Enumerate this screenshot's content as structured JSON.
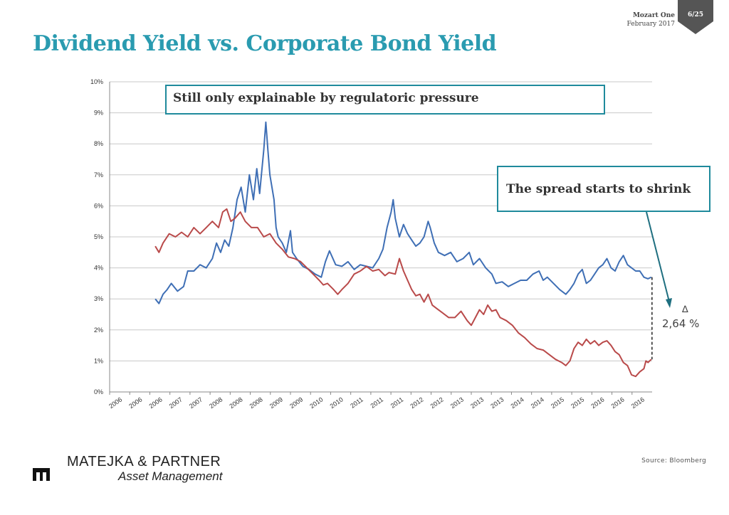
{
  "header": {
    "title": "Dividend Yield vs. Corporate Bond Yield",
    "meta_line1": "Mozart One",
    "meta_line2": "February 2017",
    "page_number": "6/25",
    "badge_color": "#555555",
    "title_color": "#2a9bb0"
  },
  "callouts": {
    "top": "Still only explainable by regulatoric pressure",
    "right": "The spread starts to shrink",
    "border_color": "#1f8a9c"
  },
  "spread": {
    "delta_symbol": "∆",
    "value": "2,64 %"
  },
  "footer": {
    "source": "Source: Bloomberg",
    "company_line1": "MATEJKA & PARTNER",
    "company_line2": "Asset Management",
    "logo_icon": "building-mark-icon"
  },
  "chart_data": {
    "type": "line",
    "title": "",
    "xlabel": "",
    "ylabel": "",
    "ylim": [
      0,
      10
    ],
    "y_ticks": [
      "0%",
      "1%",
      "2%",
      "3%",
      "4%",
      "5%",
      "6%",
      "7%",
      "8%",
      "9%",
      "10%"
    ],
    "x_tick_labels": [
      "2006",
      "2006",
      "2006",
      "2007",
      "2007",
      "2008",
      "2008",
      "2008",
      "2009",
      "2009",
      "2010",
      "2010",
      "2011",
      "2011",
      "2011",
      "2012",
      "2012",
      "2013",
      "2013",
      "2013",
      "2014",
      "2014",
      "2015",
      "2015",
      "2016",
      "2016",
      "2016"
    ],
    "grid": "horizontal",
    "legend": "none",
    "series": [
      {
        "color": "#3f6fb5",
        "points": [
          [
            0.111,
            3.0
          ],
          [
            0.12,
            2.85
          ],
          [
            0.13,
            3.15
          ],
          [
            0.14,
            3.3
          ],
          [
            0.15,
            3.5
          ],
          [
            0.165,
            3.25
          ],
          [
            0.18,
            3.4
          ],
          [
            0.19,
            3.9
          ],
          [
            0.205,
            3.9
          ],
          [
            0.22,
            4.1
          ],
          [
            0.235,
            4.0
          ],
          [
            0.25,
            4.3
          ],
          [
            0.26,
            4.8
          ],
          [
            0.27,
            4.5
          ],
          [
            0.28,
            4.9
          ],
          [
            0.29,
            4.7
          ],
          [
            0.3,
            5.3
          ],
          [
            0.31,
            6.2
          ],
          [
            0.32,
            6.6
          ],
          [
            0.33,
            5.8
          ],
          [
            0.34,
            7.0
          ],
          [
            0.35,
            6.2
          ],
          [
            0.358,
            7.2
          ],
          [
            0.365,
            6.4
          ],
          [
            0.375,
            7.8
          ],
          [
            0.38,
            8.7
          ],
          [
            0.385,
            7.8
          ],
          [
            0.39,
            7.0
          ],
          [
            0.4,
            6.2
          ],
          [
            0.405,
            5.3
          ],
          [
            0.41,
            5.0
          ],
          [
            0.42,
            4.8
          ],
          [
            0.43,
            4.5
          ],
          [
            0.44,
            5.2
          ],
          [
            0.445,
            4.5
          ],
          [
            0.455,
            4.3
          ],
          [
            0.47,
            4.05
          ],
          [
            0.485,
            3.95
          ],
          [
            0.5,
            3.8
          ],
          [
            0.515,
            3.7
          ],
          [
            0.525,
            4.2
          ],
          [
            0.535,
            4.55
          ],
          [
            0.55,
            4.1
          ],
          [
            0.565,
            4.05
          ],
          [
            0.58,
            4.2
          ],
          [
            0.595,
            3.95
          ],
          [
            0.61,
            4.1
          ],
          [
            0.625,
            4.05
          ],
          [
            0.64,
            4.0
          ],
          [
            0.655,
            4.3
          ],
          [
            0.665,
            4.6
          ],
          [
            0.675,
            5.3
          ],
          [
            0.685,
            5.8
          ],
          [
            0.69,
            6.2
          ],
          [
            0.695,
            5.6
          ],
          [
            0.705,
            5.0
          ],
          [
            0.715,
            5.4
          ],
          [
            0.725,
            5.1
          ],
          [
            0.735,
            4.9
          ],
          [
            0.745,
            4.7
          ],
          [
            0.755,
            4.8
          ],
          [
            0.765,
            5.0
          ],
          [
            0.775,
            5.5
          ],
          [
            0.78,
            5.3
          ],
          [
            0.79,
            4.8
          ],
          [
            0.8,
            4.5
          ],
          [
            0.815,
            4.4
          ],
          [
            0.83,
            4.5
          ],
          [
            0.845,
            4.2
          ],
          [
            0.86,
            4.3
          ],
          [
            0.875,
            4.5
          ],
          [
            0.885,
            4.1
          ],
          [
            0.9,
            4.3
          ],
          [
            0.915,
            4.0
          ],
          [
            0.93,
            3.8
          ],
          [
            0.94,
            3.5
          ],
          [
            0.955,
            3.55
          ],
          [
            0.97,
            3.4
          ],
          [
            0.985,
            3.5
          ],
          [
            1.0,
            3.6
          ],
          [
            1.015,
            3.6
          ],
          [
            1.03,
            3.8
          ],
          [
            1.045,
            3.9
          ],
          [
            1.055,
            3.6
          ],
          [
            1.065,
            3.7
          ],
          [
            1.08,
            3.5
          ],
          [
            1.095,
            3.3
          ],
          [
            1.11,
            3.15
          ],
          [
            1.12,
            3.3
          ],
          [
            1.13,
            3.5
          ],
          [
            1.14,
            3.8
          ],
          [
            1.15,
            3.95
          ],
          [
            1.16,
            3.5
          ],
          [
            1.17,
            3.6
          ],
          [
            1.18,
            3.8
          ],
          [
            1.19,
            4.0
          ],
          [
            1.2,
            4.1
          ],
          [
            1.21,
            4.3
          ],
          [
            1.22,
            4.0
          ],
          [
            1.23,
            3.9
          ],
          [
            1.24,
            4.2
          ],
          [
            1.25,
            4.4
          ],
          [
            1.26,
            4.1
          ],
          [
            1.27,
            4.0
          ],
          [
            1.28,
            3.9
          ],
          [
            1.29,
            3.9
          ],
          [
            1.3,
            3.7
          ],
          [
            1.31,
            3.65
          ],
          [
            1.318,
            3.7
          ]
        ]
      },
      {
        "color": "#b94a4a",
        "points": [
          [
            0.111,
            4.7
          ],
          [
            0.12,
            4.5
          ],
          [
            0.13,
            4.8
          ],
          [
            0.145,
            5.1
          ],
          [
            0.16,
            5.0
          ],
          [
            0.175,
            5.15
          ],
          [
            0.19,
            5.0
          ],
          [
            0.205,
            5.3
          ],
          [
            0.22,
            5.1
          ],
          [
            0.235,
            5.3
          ],
          [
            0.25,
            5.5
          ],
          [
            0.265,
            5.3
          ],
          [
            0.275,
            5.8
          ],
          [
            0.285,
            5.9
          ],
          [
            0.295,
            5.5
          ],
          [
            0.305,
            5.6
          ],
          [
            0.318,
            5.8
          ],
          [
            0.33,
            5.5
          ],
          [
            0.345,
            5.3
          ],
          [
            0.36,
            5.3
          ],
          [
            0.375,
            5.0
          ],
          [
            0.39,
            5.1
          ],
          [
            0.405,
            4.8
          ],
          [
            0.42,
            4.6
          ],
          [
            0.435,
            4.35
          ],
          [
            0.45,
            4.3
          ],
          [
            0.465,
            4.2
          ],
          [
            0.48,
            4.0
          ],
          [
            0.495,
            3.8
          ],
          [
            0.51,
            3.6
          ],
          [
            0.52,
            3.45
          ],
          [
            0.53,
            3.5
          ],
          [
            0.545,
            3.3
          ],
          [
            0.555,
            3.15
          ],
          [
            0.565,
            3.3
          ],
          [
            0.58,
            3.5
          ],
          [
            0.595,
            3.8
          ],
          [
            0.61,
            3.9
          ],
          [
            0.625,
            4.05
          ],
          [
            0.64,
            3.9
          ],
          [
            0.655,
            3.95
          ],
          [
            0.67,
            3.75
          ],
          [
            0.68,
            3.85
          ],
          [
            0.695,
            3.8
          ],
          [
            0.705,
            4.3
          ],
          [
            0.715,
            3.9
          ],
          [
            0.725,
            3.6
          ],
          [
            0.735,
            3.3
          ],
          [
            0.745,
            3.1
          ],
          [
            0.755,
            3.15
          ],
          [
            0.765,
            2.9
          ],
          [
            0.775,
            3.15
          ],
          [
            0.785,
            2.8
          ],
          [
            0.795,
            2.7
          ],
          [
            0.81,
            2.55
          ],
          [
            0.825,
            2.4
          ],
          [
            0.84,
            2.4
          ],
          [
            0.855,
            2.6
          ],
          [
            0.87,
            2.3
          ],
          [
            0.88,
            2.15
          ],
          [
            0.89,
            2.4
          ],
          [
            0.9,
            2.65
          ],
          [
            0.91,
            2.5
          ],
          [
            0.92,
            2.8
          ],
          [
            0.93,
            2.6
          ],
          [
            0.94,
            2.65
          ],
          [
            0.95,
            2.4
          ],
          [
            0.965,
            2.3
          ],
          [
            0.98,
            2.15
          ],
          [
            0.995,
            1.9
          ],
          [
            1.01,
            1.75
          ],
          [
            1.025,
            1.55
          ],
          [
            1.04,
            1.4
          ],
          [
            1.055,
            1.35
          ],
          [
            1.07,
            1.2
          ],
          [
            1.085,
            1.05
          ],
          [
            1.1,
            0.95
          ],
          [
            1.11,
            0.85
          ],
          [
            1.12,
            1.0
          ],
          [
            1.13,
            1.4
          ],
          [
            1.14,
            1.6
          ],
          [
            1.15,
            1.5
          ],
          [
            1.16,
            1.7
          ],
          [
            1.17,
            1.55
          ],
          [
            1.18,
            1.65
          ],
          [
            1.19,
            1.5
          ],
          [
            1.2,
            1.6
          ],
          [
            1.21,
            1.65
          ],
          [
            1.22,
            1.5
          ],
          [
            1.23,
            1.3
          ],
          [
            1.24,
            1.2
          ],
          [
            1.25,
            0.95
          ],
          [
            1.26,
            0.85
          ],
          [
            1.27,
            0.55
          ],
          [
            1.28,
            0.5
          ],
          [
            1.29,
            0.65
          ],
          [
            1.3,
            0.75
          ],
          [
            1.305,
            1.0
          ],
          [
            1.31,
            0.95
          ],
          [
            1.318,
            1.05
          ]
        ]
      }
    ]
  }
}
